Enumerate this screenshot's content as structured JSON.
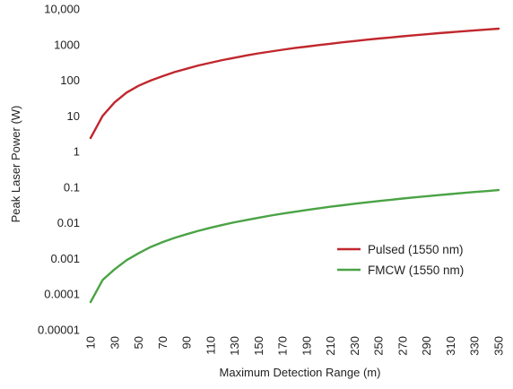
{
  "chart_data": {
    "type": "line",
    "xlabel": "Maximum Detection Range (m)",
    "ylabel": "Peak Laser Power (W)",
    "yscale": "log",
    "ylim": [
      1e-05,
      10000
    ],
    "xlim": [
      10,
      350
    ],
    "x_ticks": [
      "10",
      "30",
      "50",
      "70",
      "90",
      "110",
      "130",
      "150",
      "170",
      "190",
      "210",
      "230",
      "250",
      "270",
      "290",
      "310",
      "330",
      "350"
    ],
    "y_ticks": [
      "10,000",
      "1000",
      "100",
      "10",
      "1",
      "0.1",
      "0.01",
      "0.001",
      "0.0001",
      "0.00001"
    ],
    "grid": false,
    "legend_position": "lower-right",
    "x": [
      10,
      20,
      30,
      40,
      50,
      60,
      70,
      80,
      90,
      100,
      110,
      120,
      130,
      140,
      150,
      160,
      170,
      180,
      190,
      200,
      210,
      220,
      230,
      240,
      250,
      260,
      270,
      280,
      290,
      300,
      310,
      320,
      330,
      340,
      350
    ],
    "series": [
      {
        "name": "Pulsed (1550 nm)",
        "color": "#c0272d",
        "values": [
          2.4,
          10,
          24,
          45,
          70,
          98,
          130,
          170,
          210,
          260,
          310,
          370,
          430,
          500,
          570,
          640,
          720,
          800,
          880,
          970,
          1060,
          1160,
          1260,
          1370,
          1480,
          1590,
          1710,
          1830,
          1960,
          2090,
          2220,
          2360,
          2500,
          2650,
          2800
        ]
      },
      {
        "name": "FMCW (1550 nm)",
        "color": "#4aa345",
        "values": [
          6e-05,
          0.00025,
          0.0005,
          0.0009,
          0.0014,
          0.0021,
          0.0029,
          0.0038,
          0.0048,
          0.006,
          0.0073,
          0.0088,
          0.0104,
          0.0121,
          0.014,
          0.016,
          0.0182,
          0.0205,
          0.023,
          0.0256,
          0.0284,
          0.0313,
          0.0344,
          0.0376,
          0.041,
          0.0445,
          0.0482,
          0.052,
          0.056,
          0.0601,
          0.0644,
          0.0688,
          0.0734,
          0.0781,
          0.083
        ]
      }
    ]
  }
}
